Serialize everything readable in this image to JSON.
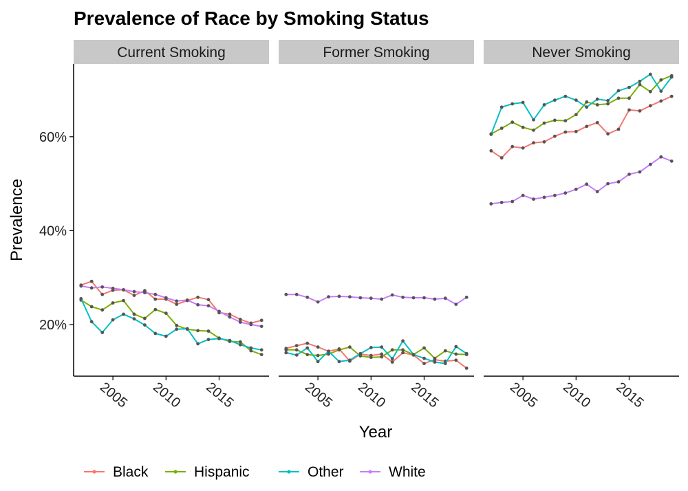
{
  "chart_data": {
    "type": "line",
    "title": "Prevalence of Race by Smoking Status",
    "xlabel": "Year",
    "ylabel": "Prevalence",
    "x": [
      2002,
      2003,
      2004,
      2005,
      2006,
      2007,
      2008,
      2009,
      2010,
      2011,
      2012,
      2013,
      2014,
      2015,
      2016,
      2017,
      2018,
      2019
    ],
    "x_ticks": [
      2005,
      2010,
      2015
    ],
    "x_tick_labels": [
      "2005",
      "2010",
      "2015"
    ],
    "xlim": [
      2001.3,
      2019.7
    ],
    "y_ticks": [
      0.2,
      0.4,
      0.6
    ],
    "y_tick_labels": [
      "20%",
      "40%",
      "60%"
    ],
    "ylim": [
      0.09,
      0.755
    ],
    "grid": false,
    "legend_position": "bottom",
    "colors": {
      "Black": "#F8766D",
      "Hispanic": "#7CAE00",
      "Other": "#00BFC4",
      "White": "#C77CFF"
    },
    "panels": [
      {
        "label": "Current Smoking",
        "series": [
          {
            "name": "Black",
            "values": [
              0.284,
              0.292,
              0.264,
              0.273,
              0.274,
              0.262,
              0.272,
              0.254,
              0.254,
              0.243,
              0.251,
              0.258,
              0.253,
              0.225,
              0.222,
              0.211,
              0.203,
              0.209
            ]
          },
          {
            "name": "Hispanic",
            "values": [
              0.252,
              0.238,
              0.231,
              0.246,
              0.251,
              0.222,
              0.213,
              0.232,
              0.224,
              0.198,
              0.19,
              0.187,
              0.186,
              0.171,
              0.164,
              0.163,
              0.144,
              0.136
            ]
          },
          {
            "name": "Other",
            "values": [
              0.255,
              0.206,
              0.183,
              0.21,
              0.222,
              0.212,
              0.199,
              0.181,
              0.175,
              0.19,
              0.191,
              0.159,
              0.168,
              0.17,
              0.166,
              0.157,
              0.15,
              0.146
            ]
          },
          {
            "name": "White",
            "values": [
              0.282,
              0.278,
              0.28,
              0.277,
              0.274,
              0.27,
              0.268,
              0.264,
              0.257,
              0.25,
              0.252,
              0.242,
              0.24,
              0.228,
              0.216,
              0.205,
              0.2,
              0.196
            ]
          }
        ]
      },
      {
        "label": "Former Smoking",
        "series": [
          {
            "name": "Black",
            "values": [
              0.149,
              0.155,
              0.16,
              0.152,
              0.143,
              0.148,
              0.122,
              0.137,
              0.134,
              0.137,
              0.12,
              0.14,
              0.135,
              0.117,
              0.125,
              0.122,
              0.124,
              0.107
            ]
          },
          {
            "name": "Hispanic",
            "values": [
              0.146,
              0.146,
              0.136,
              0.134,
              0.137,
              0.146,
              0.152,
              0.133,
              0.13,
              0.131,
              0.146,
              0.146,
              0.136,
              0.15,
              0.128,
              0.144,
              0.137,
              0.136
            ]
          },
          {
            "name": "Other",
            "values": [
              0.14,
              0.135,
              0.15,
              0.121,
              0.143,
              0.121,
              0.124,
              0.138,
              0.151,
              0.152,
              0.127,
              0.165,
              0.136,
              0.128,
              0.12,
              0.117,
              0.153,
              0.138
            ]
          },
          {
            "name": "White",
            "values": [
              0.264,
              0.264,
              0.258,
              0.248,
              0.259,
              0.26,
              0.259,
              0.257,
              0.256,
              0.254,
              0.263,
              0.258,
              0.257,
              0.257,
              0.254,
              0.256,
              0.243,
              0.258
            ]
          }
        ]
      },
      {
        "label": "Never Smoking",
        "series": [
          {
            "name": "Black",
            "values": [
              0.57,
              0.555,
              0.579,
              0.576,
              0.587,
              0.589,
              0.601,
              0.61,
              0.611,
              0.622,
              0.63,
              0.606,
              0.616,
              0.657,
              0.655,
              0.666,
              0.676,
              0.686
            ]
          },
          {
            "name": "Hispanic",
            "values": [
              0.606,
              0.618,
              0.631,
              0.62,
              0.614,
              0.629,
              0.635,
              0.634,
              0.647,
              0.674,
              0.668,
              0.67,
              0.682,
              0.682,
              0.711,
              0.696,
              0.721,
              0.73
            ]
          },
          {
            "name": "Other",
            "values": [
              0.605,
              0.663,
              0.67,
              0.673,
              0.636,
              0.668,
              0.678,
              0.686,
              0.678,
              0.663,
              0.68,
              0.677,
              0.698,
              0.705,
              0.718,
              0.733,
              0.697,
              0.727
            ]
          },
          {
            "name": "White",
            "values": [
              0.457,
              0.46,
              0.462,
              0.475,
              0.467,
              0.471,
              0.475,
              0.48,
              0.488,
              0.499,
              0.483,
              0.5,
              0.504,
              0.52,
              0.525,
              0.541,
              0.557,
              0.548
            ]
          }
        ]
      }
    ],
    "legend": [
      "Black",
      "Hispanic",
      "Other",
      "White"
    ]
  }
}
